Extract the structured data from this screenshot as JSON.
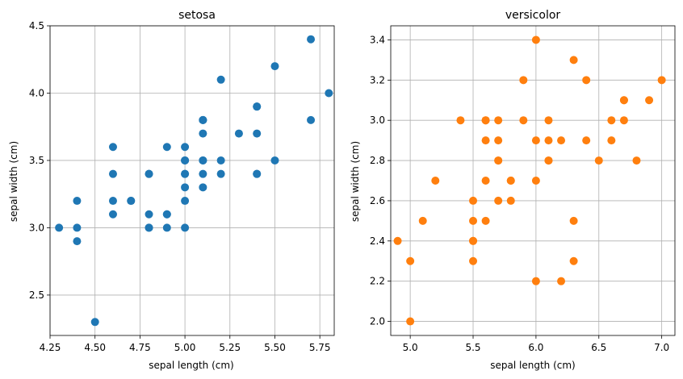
{
  "chart_data": [
    {
      "type": "scatter",
      "title": "setosa",
      "xlabel": "sepal length (cm)",
      "ylabel": "sepal width (cm)",
      "color": "#1f77b4",
      "grid": true,
      "xlim": [
        4.25,
        5.83
      ],
      "ylim": [
        2.2,
        4.5
      ],
      "xticks": [
        4.25,
        4.5,
        4.75,
        5.0,
        5.25,
        5.5,
        5.75
      ],
      "xtick_labels": [
        "4.25",
        "4.50",
        "4.75",
        "5.00",
        "5.25",
        "5.50",
        "5.75"
      ],
      "yticks": [
        2.5,
        3.0,
        3.5,
        4.0,
        4.5
      ],
      "ytick_labels": [
        "2.5",
        "3.0",
        "3.5",
        "4.0",
        "4.5"
      ],
      "points": [
        [
          5.1,
          3.5
        ],
        [
          4.9,
          3.0
        ],
        [
          4.7,
          3.2
        ],
        [
          4.6,
          3.1
        ],
        [
          5.0,
          3.6
        ],
        [
          5.4,
          3.9
        ],
        [
          4.6,
          3.4
        ],
        [
          5.0,
          3.4
        ],
        [
          4.4,
          2.9
        ],
        [
          4.9,
          3.1
        ],
        [
          5.4,
          3.7
        ],
        [
          4.8,
          3.4
        ],
        [
          4.8,
          3.0
        ],
        [
          4.3,
          3.0
        ],
        [
          5.8,
          4.0
        ],
        [
          5.7,
          4.4
        ],
        [
          5.4,
          3.9
        ],
        [
          5.1,
          3.5
        ],
        [
          5.7,
          3.8
        ],
        [
          5.1,
          3.8
        ],
        [
          5.4,
          3.4
        ],
        [
          5.1,
          3.7
        ],
        [
          4.6,
          3.6
        ],
        [
          5.1,
          3.3
        ],
        [
          4.8,
          3.4
        ],
        [
          5.0,
          3.0
        ],
        [
          5.0,
          3.4
        ],
        [
          5.2,
          3.5
        ],
        [
          5.2,
          3.4
        ],
        [
          4.7,
          3.2
        ],
        [
          4.8,
          3.1
        ],
        [
          5.4,
          3.4
        ],
        [
          5.2,
          4.1
        ],
        [
          5.5,
          4.2
        ],
        [
          4.9,
          3.1
        ],
        [
          5.0,
          3.2
        ],
        [
          5.5,
          3.5
        ],
        [
          4.9,
          3.6
        ],
        [
          4.4,
          3.0
        ],
        [
          5.1,
          3.4
        ],
        [
          5.0,
          3.5
        ],
        [
          4.5,
          2.3
        ],
        [
          4.4,
          3.2
        ],
        [
          5.0,
          3.5
        ],
        [
          5.1,
          3.8
        ],
        [
          4.8,
          3.0
        ],
        [
          5.1,
          3.8
        ],
        [
          4.6,
          3.2
        ],
        [
          5.3,
          3.7
        ],
        [
          5.0,
          3.3
        ]
      ]
    },
    {
      "type": "scatter",
      "title": "versicolor",
      "xlabel": "sepal length (cm)",
      "ylabel": "sepal width (cm)",
      "color": "#ff7f0e",
      "grid": true,
      "xlim": [
        4.845,
        7.105
      ],
      "ylim": [
        1.93,
        3.47
      ],
      "xticks": [
        5.0,
        5.5,
        6.0,
        6.5,
        7.0
      ],
      "xtick_labels": [
        "5.0",
        "5.5",
        "6.0",
        "6.5",
        "7.0"
      ],
      "yticks": [
        2.0,
        2.2,
        2.4,
        2.6,
        2.8,
        3.0,
        3.2,
        3.4
      ],
      "ytick_labels": [
        "2.0",
        "2.2",
        "2.4",
        "2.6",
        "2.8",
        "3.0",
        "3.2",
        "3.4"
      ],
      "points": [
        [
          7.0,
          3.2
        ],
        [
          6.4,
          3.2
        ],
        [
          6.9,
          3.1
        ],
        [
          5.5,
          2.3
        ],
        [
          6.5,
          2.8
        ],
        [
          5.7,
          2.8
        ],
        [
          6.3,
          3.3
        ],
        [
          4.9,
          2.4
        ],
        [
          6.6,
          2.9
        ],
        [
          5.2,
          2.7
        ],
        [
          5.0,
          2.0
        ],
        [
          5.9,
          3.0
        ],
        [
          6.0,
          2.2
        ],
        [
          6.1,
          2.9
        ],
        [
          5.6,
          2.9
        ],
        [
          6.7,
          3.1
        ],
        [
          5.6,
          3.0
        ],
        [
          5.8,
          2.7
        ],
        [
          6.2,
          2.2
        ],
        [
          5.6,
          2.5
        ],
        [
          5.9,
          3.2
        ],
        [
          6.1,
          2.8
        ],
        [
          6.3,
          2.5
        ],
        [
          6.1,
          2.8
        ],
        [
          6.4,
          2.9
        ],
        [
          6.6,
          3.0
        ],
        [
          6.8,
          2.8
        ],
        [
          6.7,
          3.0
        ],
        [
          6.0,
          2.9
        ],
        [
          5.7,
          2.6
        ],
        [
          5.5,
          2.4
        ],
        [
          5.5,
          2.4
        ],
        [
          5.8,
          2.7
        ],
        [
          6.0,
          2.7
        ],
        [
          5.4,
          3.0
        ],
        [
          6.0,
          3.4
        ],
        [
          6.7,
          3.1
        ],
        [
          6.3,
          2.3
        ],
        [
          5.6,
          3.0
        ],
        [
          5.5,
          2.5
        ],
        [
          5.5,
          2.6
        ],
        [
          6.1,
          3.0
        ],
        [
          5.8,
          2.6
        ],
        [
          5.0,
          2.3
        ],
        [
          5.6,
          2.7
        ],
        [
          5.7,
          3.0
        ],
        [
          5.7,
          2.9
        ],
        [
          6.2,
          2.9
        ],
        [
          5.1,
          2.5
        ],
        [
          5.7,
          2.8
        ]
      ]
    }
  ]
}
